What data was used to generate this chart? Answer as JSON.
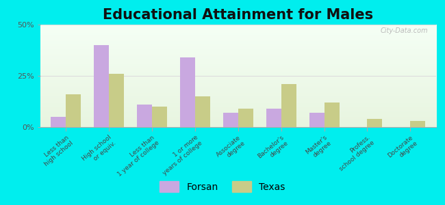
{
  "title": "Educational Attainment for Males",
  "categories": [
    "Less than\nhigh school",
    "High school\nor equiv.",
    "Less than\n1 year of college",
    "1 or more\nyears of college",
    "Associate\ndegree",
    "Bachelor's\ndegree",
    "Master's\ndegree",
    "Profess.\nschool degree",
    "Doctorate\ndegree"
  ],
  "forsan": [
    5,
    40,
    11,
    34,
    7,
    9,
    7,
    0,
    0
  ],
  "texas": [
    16,
    26,
    10,
    15,
    9,
    21,
    12,
    4,
    3
  ],
  "forsan_color": "#c9a8e0",
  "texas_color": "#c8cc88",
  "background_color": "#00eeee",
  "plot_bg_colors": [
    "#e8f5e0",
    "#f5fff5"
  ],
  "ylim": [
    0,
    50
  ],
  "yticks": [
    0,
    25,
    50
  ],
  "ytick_labels": [
    "0%",
    "25%",
    "50%"
  ],
  "title_fontsize": 15,
  "tick_fontsize": 6.5,
  "legend_fontsize": 10,
  "bar_width": 0.35,
  "watermark": "City-Data.com"
}
